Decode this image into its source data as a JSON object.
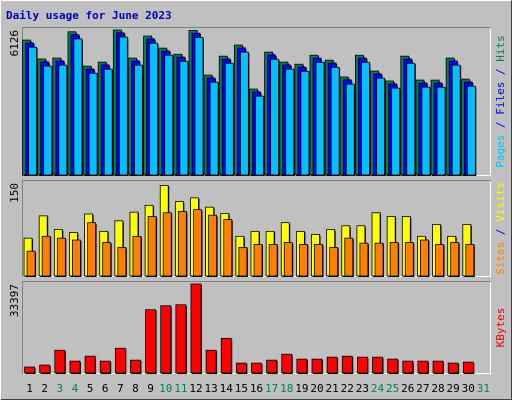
{
  "title": "Daily usage for June 2023",
  "separator": "/",
  "chart_data": [
    {
      "type": "bar",
      "ylim": [
        0,
        6126
      ],
      "yticks": [
        6126
      ],
      "series": [
        {
          "name": "Hits",
          "color": "#00805c",
          "values": [
            5700,
            4900,
            4940,
            6050,
            4600,
            4770,
            6126,
            4940,
            5870,
            5360,
            5100,
            6110,
            4220,
            5020,
            5490,
            3630,
            5190,
            4770,
            4680,
            5060,
            4850,
            4140,
            5060,
            4390,
            3970,
            5020,
            4010,
            4010,
            4940,
            4050,
            null
          ]
        },
        {
          "name": "Files",
          "color": "#0000ff",
          "values": [
            5580,
            4780,
            4820,
            5930,
            4480,
            4650,
            6006,
            4820,
            5750,
            5240,
            4980,
            5990,
            4100,
            4900,
            5370,
            3510,
            5070,
            4650,
            4560,
            4940,
            4730,
            4020,
            4940,
            4270,
            3850,
            4900,
            3890,
            3890,
            4820,
            3930,
            null
          ]
        },
        {
          "name": "Pages",
          "color": "#00c0ff",
          "values": [
            5400,
            4600,
            4640,
            5750,
            4300,
            4470,
            5826,
            4640,
            5570,
            5060,
            4800,
            5810,
            3920,
            4720,
            5190,
            3330,
            4890,
            4470,
            4380,
            4760,
            4550,
            3840,
            4760,
            4090,
            3670,
            4720,
            3710,
            3710,
            4640,
            3750,
            null
          ]
        }
      ]
    },
    {
      "type": "bar",
      "ylim": [
        0,
        150
      ],
      "yticks": [
        150
      ],
      "series": [
        {
          "name": "Visits",
          "color": "#ffff00",
          "values": [
            61,
            97,
            75,
            70,
            100,
            72,
            89,
            103,
            114,
            146,
            120,
            126,
            111,
            101,
            64,
            72,
            72,
            86,
            72,
            67,
            75,
            81,
            81,
            102,
            96,
            96,
            64,
            83,
            64,
            83,
            null
          ]
        },
        {
          "name": "Sites",
          "color": "#ff8000",
          "values": [
            40,
            64,
            61,
            58,
            86,
            54,
            46,
            64,
            96,
            102,
            104,
            107,
            98,
            91,
            46,
            51,
            51,
            54,
            51,
            51,
            46,
            61,
            53,
            53,
            54,
            54,
            58,
            51,
            54,
            51,
            null
          ]
        }
      ]
    },
    {
      "type": "bar",
      "ylim": [
        0,
        33397
      ],
      "yticks": [
        33397
      ],
      "categories": [
        "1",
        "2",
        "3",
        "4",
        "5",
        "6",
        "7",
        "8",
        "9",
        "10",
        "11",
        "12",
        "13",
        "14",
        "15",
        "16",
        "17",
        "18",
        "19",
        "20",
        "21",
        "22",
        "23",
        "24",
        "25",
        "26",
        "27",
        "28",
        "29",
        "30",
        "31"
      ],
      "highlight_categories": [
        "3",
        "4",
        "10",
        "11",
        "17",
        "18",
        "24",
        "25",
        "31"
      ],
      "highlight_color": "#00805c",
      "series": [
        {
          "name": "KBytes",
          "color": "#ff0000",
          "values": [
            2230,
            2970,
            8540,
            4450,
            6300,
            4450,
            9280,
            4820,
            23750,
            25230,
            25600,
            33397,
            8540,
            13000,
            3710,
            3710,
            4820,
            7050,
            5200,
            5200,
            5940,
            6300,
            5940,
            5940,
            5200,
            4450,
            4450,
            4450,
            3710,
            4080,
            null
          ]
        }
      ]
    }
  ]
}
